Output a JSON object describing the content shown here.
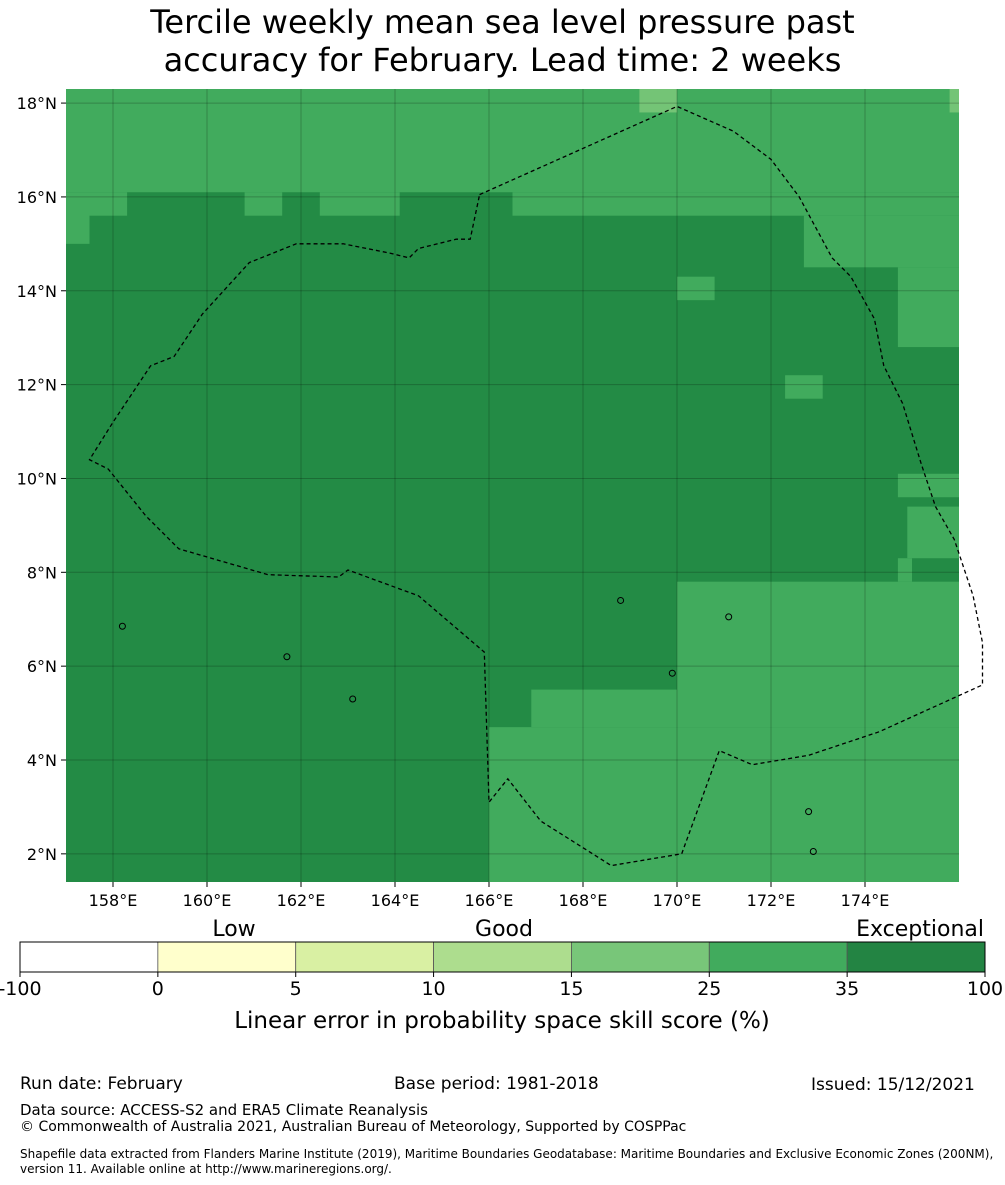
{
  "title_lines": [
    "Tercile weekly mean sea level pressure past",
    "accuracy for February. Lead time: 2 weeks"
  ],
  "chart_data": {
    "type": "heatmap",
    "title": "Tercile weekly mean sea level pressure past accuracy for February. Lead time: 2 weeks",
    "x_axis": {
      "ticks": [
        158,
        160,
        162,
        164,
        166,
        168,
        170,
        172,
        174
      ],
      "tick_labels": [
        "158°E",
        "160°E",
        "162°E",
        "164°E",
        "166°E",
        "168°E",
        "170°E",
        "172°E",
        "174°E"
      ],
      "range": [
        157,
        176
      ]
    },
    "y_axis": {
      "ticks": [
        2,
        4,
        6,
        8,
        10,
        12,
        14,
        16,
        18
      ],
      "tick_labels": [
        "2°N",
        "4°N",
        "6°N",
        "8°N",
        "10°N",
        "12°N",
        "14°N",
        "16°N",
        "18°N"
      ],
      "range": [
        1.4,
        18.3
      ]
    },
    "grid": true,
    "categories": [
      {
        "range": "15-25",
        "color": "#74c476"
      },
      {
        "range": "25-35",
        "color": "#41ab5d"
      },
      {
        "range": "35-100",
        "color": "#238b45"
      }
    ],
    "regions_25_35": [
      {
        "lon": [
          157,
          176
        ],
        "lat": [
          16.1,
          18.3
        ]
      },
      {
        "lon": [
          157,
          157.5
        ],
        "lat": [
          15.0,
          16.1
        ]
      },
      {
        "lon": [
          157.5,
          158.3
        ],
        "lat": [
          15.6,
          16.1
        ]
      },
      {
        "lon": [
          160.8,
          161.6
        ],
        "lat": [
          15.6,
          16.1
        ]
      },
      {
        "lon": [
          162.4,
          164.1
        ],
        "lat": [
          15.6,
          16.1
        ]
      },
      {
        "lon": [
          166.5,
          176
        ],
        "lat": [
          15.6,
          16.1
        ]
      },
      {
        "lon": [
          172.7,
          176
        ],
        "lat": [
          14.5,
          15.6
        ]
      },
      {
        "lon": [
          174.7,
          176
        ],
        "lat": [
          12.8,
          14.5
        ]
      },
      {
        "lon": [
          174.7,
          176
        ],
        "lat": [
          9.6,
          10.1
        ]
      },
      {
        "lon": [
          174.9,
          176
        ],
        "lat": [
          8.3,
          9.4
        ]
      },
      {
        "lon": [
          174.7,
          175.0
        ],
        "lat": [
          7.8,
          8.3
        ]
      },
      {
        "lon": [
          170,
          176
        ],
        "lat": [
          4.7,
          7.8
        ]
      },
      {
        "lon": [
          166.0,
          176
        ],
        "lat": [
          1.4,
          4.7
        ]
      },
      {
        "lon": [
          166.9,
          170
        ],
        "lat": [
          4.7,
          5.5
        ]
      },
      {
        "lon": [
          170.0,
          170.8
        ],
        "lat": [
          13.8,
          14.3
        ]
      },
      {
        "lon": [
          172.3,
          173.1
        ],
        "lat": [
          11.7,
          12.2
        ]
      }
    ],
    "regions_15_25": [
      {
        "lon": [
          169.2,
          170.0
        ],
        "lat": [
          17.8,
          18.3
        ]
      },
      {
        "lon": [
          175.8,
          176
        ],
        "lat": [
          17.8,
          18.3
        ]
      }
    ],
    "default_category": "35-100",
    "overlays": [
      "dashed EEZ boundary",
      "coastlines"
    ]
  },
  "colorbar": {
    "quality_labels": [
      "Low",
      "Good",
      "Exceptional"
    ],
    "tick_labels": [
      "-100",
      "0",
      "5",
      "10",
      "15",
      "25",
      "35",
      "100"
    ],
    "colors": [
      "#ffffff",
      "#ffffcc",
      "#d9f0a3",
      "#addd8e",
      "#78c679",
      "#41ab5d",
      "#238443"
    ],
    "label": "Linear error in probability space skill score (%)"
  },
  "footer": {
    "run_date": "Run date: February",
    "base_period": "Base period: 1981-2018",
    "issued": "Issued: 15/12/2021",
    "data_source": "Data source: ACCESS-S2 and ERA5 Climate Reanalysis",
    "copyright": "© Commonwealth of Australia 2021, Australian Bureau of Meteorology, Supported by COSPPac",
    "shapefile_1": "Shapefile data extracted from Flanders Marine Institute (2019), Maritime Boundaries Geodatabase: Maritime Boundaries and Exclusive Economic Zones (200NM),",
    "shapefile_2": "version 11. Available online at http://www.marineregions.org/."
  }
}
